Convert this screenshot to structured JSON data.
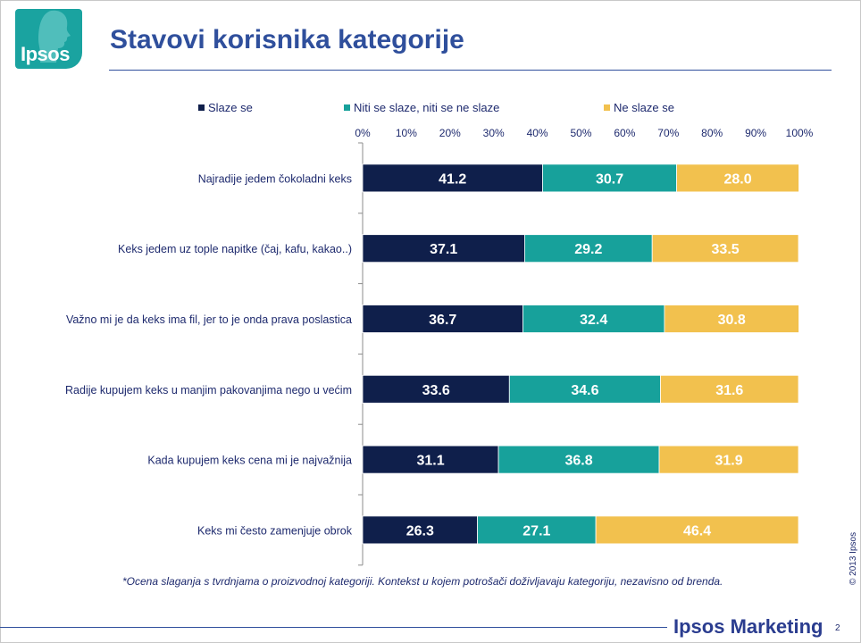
{
  "logo": {
    "text": "Ipsos"
  },
  "slide": {
    "title": "Stavovi korisnika kategorije"
  },
  "colors": {
    "agree": "#0f1f4b",
    "neutral": "#17a19b",
    "disagree": "#f2c14e",
    "title": "#2f4f9c"
  },
  "chart_data": {
    "type": "bar",
    "orientation": "horizontal",
    "stacked": true,
    "title": "",
    "xlabel": "",
    "ylabel": "",
    "xlim": [
      0,
      100
    ],
    "xticks": [
      "0%",
      "10%",
      "20%",
      "30%",
      "40%",
      "50%",
      "60%",
      "70%",
      "80%",
      "90%",
      "100%"
    ],
    "legend_position": "top",
    "grid": false,
    "categories": [
      "Najradije jedem čokoladni keks",
      "Keks jedem uz tople napitke (čaj, kafu, kakao..)",
      "Važno mi je da keks ima fil, jer to je onda prava poslastica",
      "Radije kupujem keks u manjim pakovanjima nego u većim",
      "Kada kupujem keks cena mi je najvažnija",
      "Keks mi često zamenjuje obrok"
    ],
    "series": [
      {
        "name": "Slaze se",
        "color": "#0f1f4b",
        "values": [
          41.2,
          37.1,
          36.7,
          33.6,
          31.1,
          26.3
        ],
        "labels": [
          "41.2",
          "37.1",
          "36.7",
          "33.6",
          "31.1",
          "26.3"
        ]
      },
      {
        "name": "Niti se slaze, niti se ne slaze",
        "color": "#17a19b",
        "values": [
          30.7,
          29.2,
          32.4,
          34.6,
          36.8,
          27.1
        ],
        "labels": [
          "30.7",
          "29.2",
          "32.4",
          "34.6",
          "36.8",
          "27.1"
        ]
      },
      {
        "name": "Ne slaze se",
        "color": "#f2c14e",
        "values": [
          28.0,
          33.5,
          30.8,
          31.6,
          31.9,
          46.4
        ],
        "labels": [
          "28.0",
          "33.5",
          "30.8",
          "31.6",
          "31.9",
          "46.4"
        ]
      }
    ]
  },
  "footnote": "*Ocena slaganja s tvrdnjama o proizvodnoj kategoriji. Kontekst u kojem potrošači doživljavaju kategoriju, nezavisno od brenda.",
  "footer": {
    "copyright": "© 2013 Ipsos",
    "brand": "Ipsos Marketing",
    "page_number": "2"
  }
}
